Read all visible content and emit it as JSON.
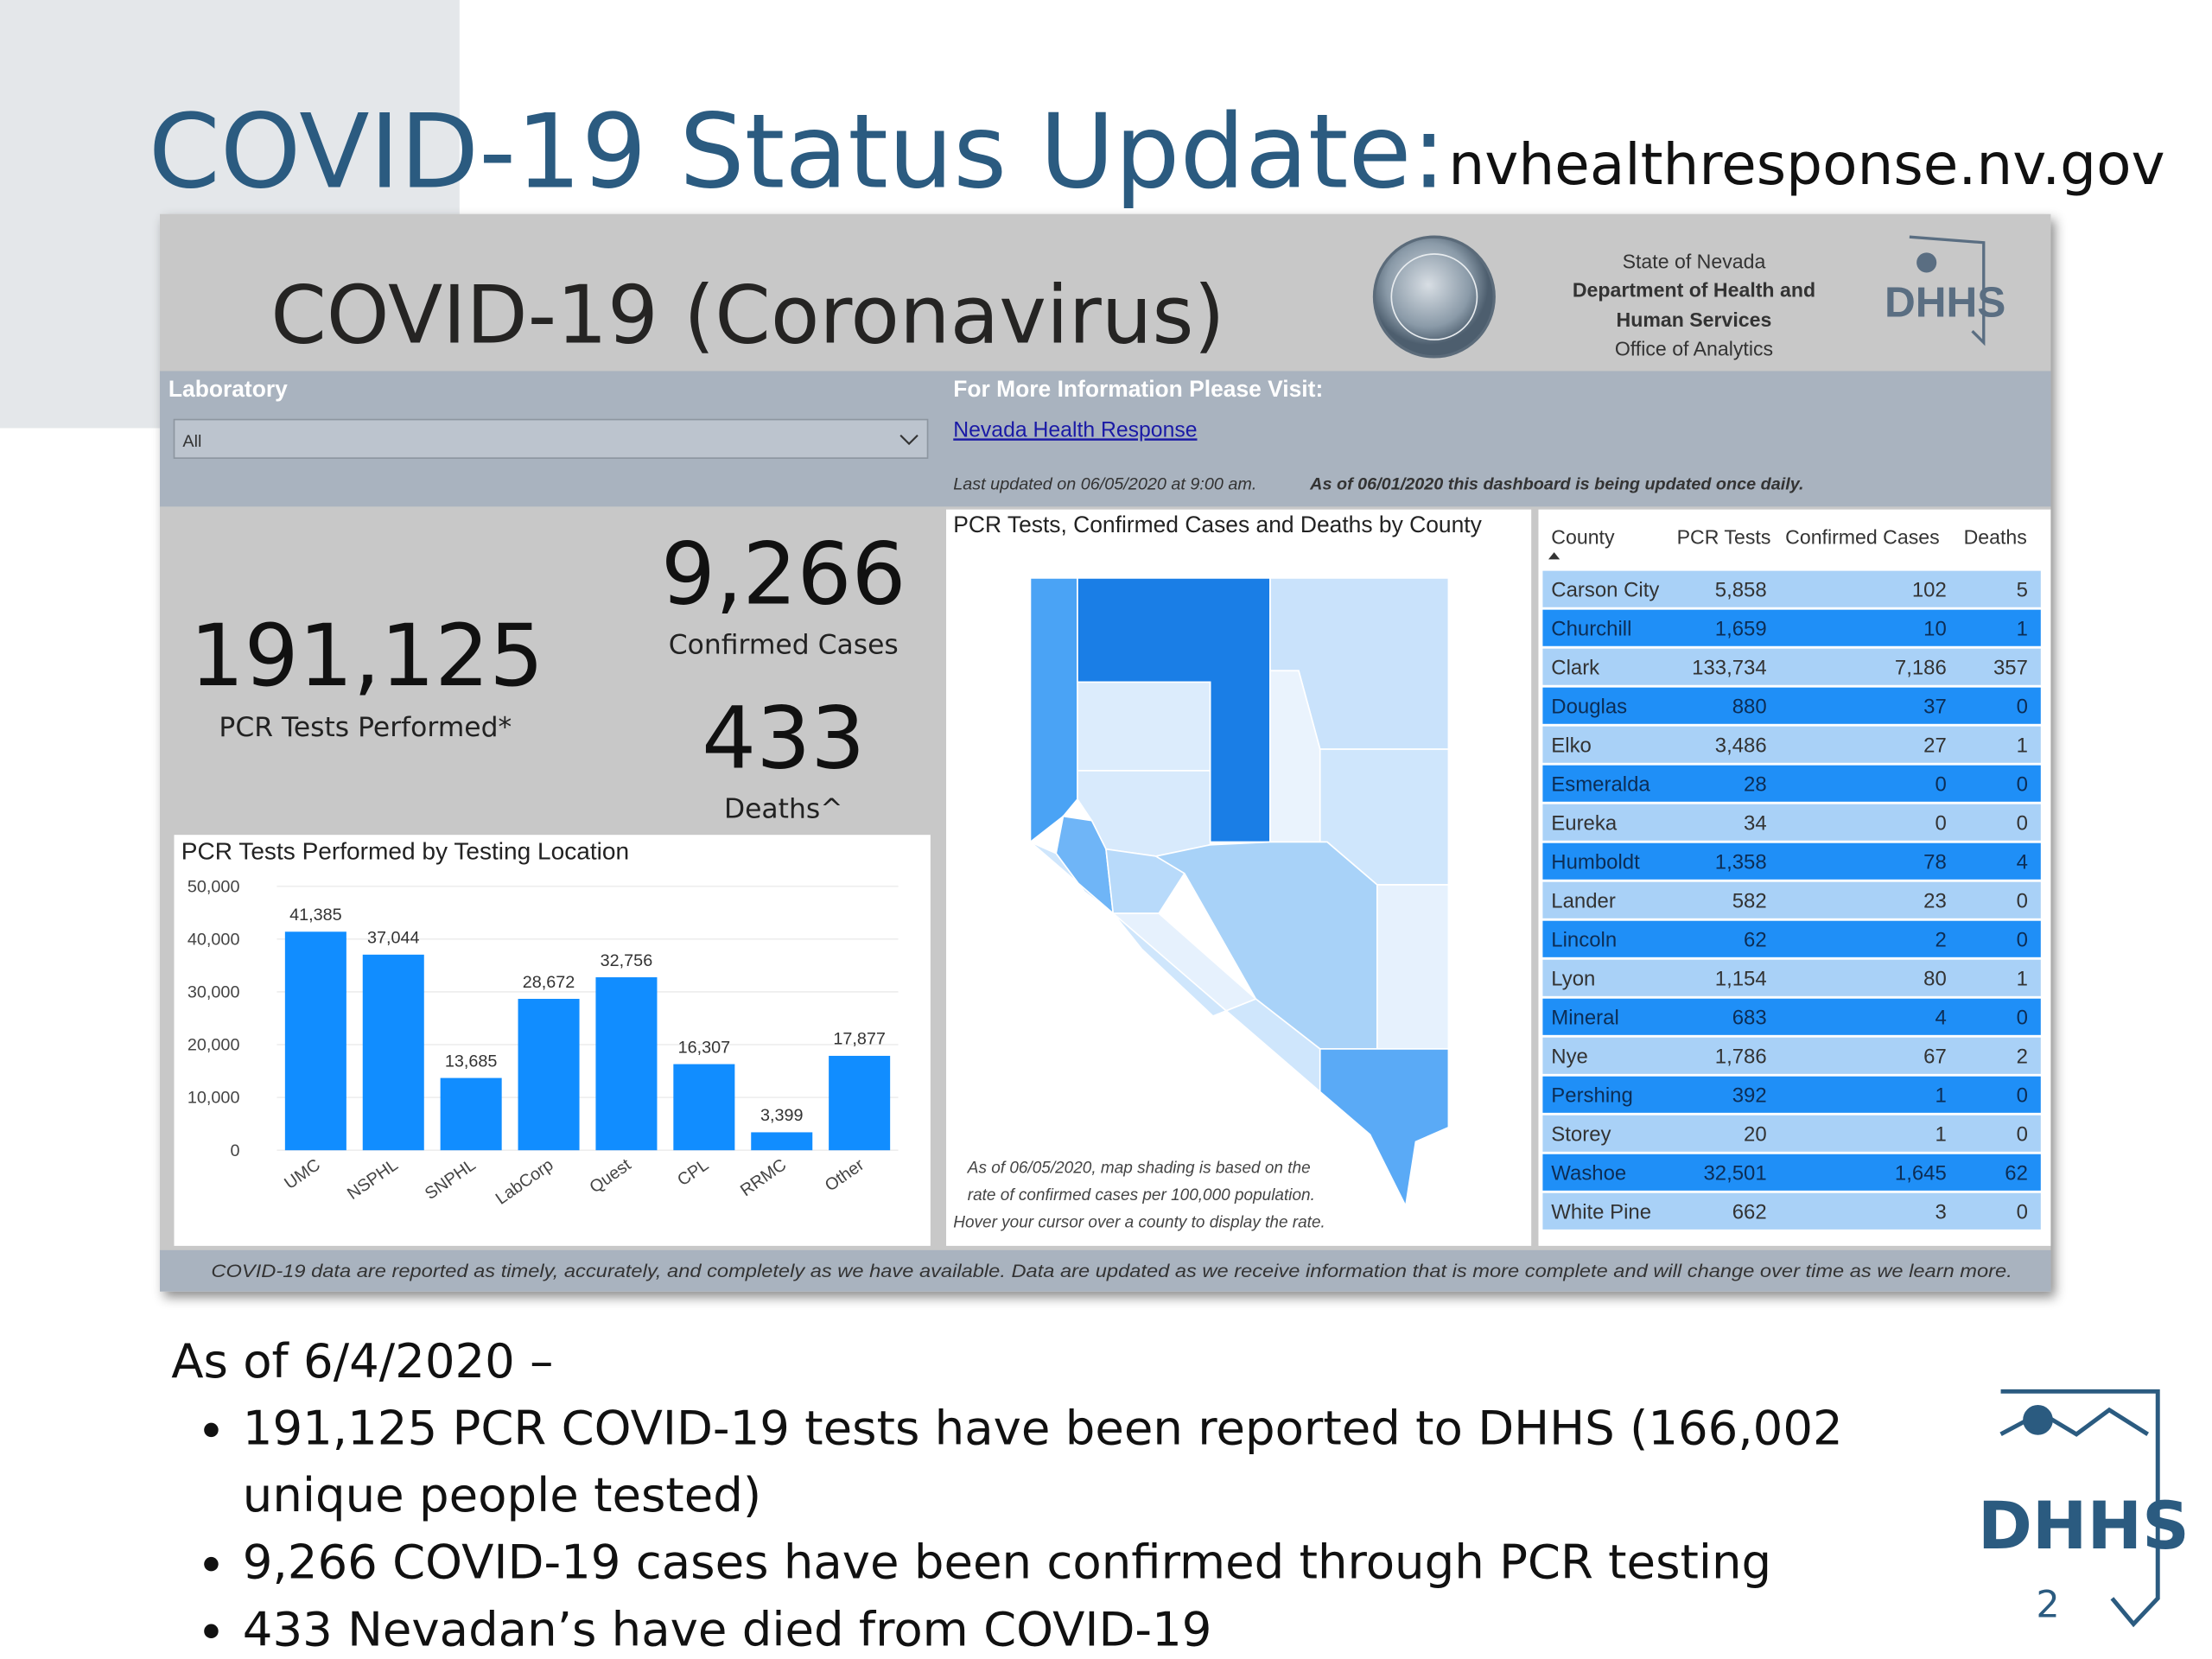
{
  "slide": {
    "title": "COVID-19 Status Update:",
    "url": "nvhealthresponse.nv.gov",
    "page_number": "2",
    "logo_text": "DHHS",
    "summary": {
      "heading": "As of 6/4/2020 –",
      "bullets": [
        "191,125 PCR COVID-19 tests have been reported to DHHS (166,002 unique people tested)",
        "9,266 COVID-19 cases have been confirmed through PCR testing",
        "433 Nevadan’s have died from COVID-19"
      ]
    }
  },
  "dashboard": {
    "title": "COVID-19 (Coronavirus)",
    "agency": [
      "State of Nevada",
      "Department of Health and",
      "Human Services",
      "Office of Analytics"
    ],
    "logo_text": "DHHS",
    "filter": {
      "label": "Laboratory",
      "value": "All"
    },
    "info": {
      "heading": "For More Information Please Visit:",
      "link": "Nevada Health Response",
      "updated": "Last updated on 06/05/2020 at 9:00 am.",
      "notice": "As of 06/01/2020 this dashboard is being updated once daily."
    },
    "kpis": [
      {
        "value": "191,125",
        "label": "PCR Tests Performed*"
      },
      {
        "value": "9,266",
        "label": "Confirmed Cases"
      },
      {
        "value": "433",
        "label": "Deaths^"
      }
    ],
    "map": {
      "title": "PCR Tests, Confirmed Cases and Deaths by County",
      "note": [
        "As of 06/05/2020, map shading is based on the",
        "rate of confirmed cases per 100,000 population.",
        "Hover your cursor over a county to display the rate."
      ]
    },
    "table": {
      "columns": [
        "County",
        "PCR Tests",
        "Confirmed Cases",
        "Deaths"
      ],
      "rows": [
        [
          "Carson City",
          "5,858",
          "102",
          "5"
        ],
        [
          "Churchill",
          "1,659",
          "10",
          "1"
        ],
        [
          "Clark",
          "133,734",
          "7,186",
          "357"
        ],
        [
          "Douglas",
          "880",
          "37",
          "0"
        ],
        [
          "Elko",
          "3,486",
          "27",
          "1"
        ],
        [
          "Esmeralda",
          "28",
          "0",
          "0"
        ],
        [
          "Eureka",
          "34",
          "0",
          "0"
        ],
        [
          "Humboldt",
          "1,358",
          "78",
          "4"
        ],
        [
          "Lander",
          "582",
          "23",
          "0"
        ],
        [
          "Lincoln",
          "62",
          "2",
          "0"
        ],
        [
          "Lyon",
          "1,154",
          "80",
          "1"
        ],
        [
          "Mineral",
          "683",
          "4",
          "0"
        ],
        [
          "Nye",
          "1,786",
          "67",
          "2"
        ],
        [
          "Pershing",
          "392",
          "1",
          "0"
        ],
        [
          "Storey",
          "20",
          "1",
          "0"
        ],
        [
          "Washoe",
          "32,501",
          "1,645",
          "62"
        ],
        [
          "White Pine",
          "662",
          "3",
          "0"
        ]
      ]
    },
    "footer": "COVID-19 data are reported as timely, accurately, and completely as we have available.  Data are updated as we receive information that is more complete and will change over time as we learn more."
  },
  "chart_data": {
    "type": "bar",
    "title": "PCR Tests Performed by Testing Location",
    "categories": [
      "UMC",
      "NSPHL",
      "SNPHL",
      "LabCorp",
      "Quest",
      "CPL",
      "RRMC",
      "Other"
    ],
    "values": [
      41385,
      37044,
      13685,
      28672,
      32756,
      16307,
      3399,
      17877
    ],
    "value_labels": [
      "41,385",
      "37,044",
      "13,685",
      "28,672",
      "32,756",
      "16,307",
      "3,399",
      "17,877"
    ],
    "color": "#118dff",
    "ylim": [
      0,
      50000
    ],
    "yticks": [
      0,
      {
        "value": 10000,
        "label": "10,000"
      },
      {
        "value": 20000,
        "label": "20,000"
      },
      {
        "value": 30000,
        "label": "30,000"
      },
      {
        "value": 40000,
        "label": "40,000"
      },
      {
        "value": 50000,
        "label": "50,000"
      }
    ],
    "grid": true
  }
}
